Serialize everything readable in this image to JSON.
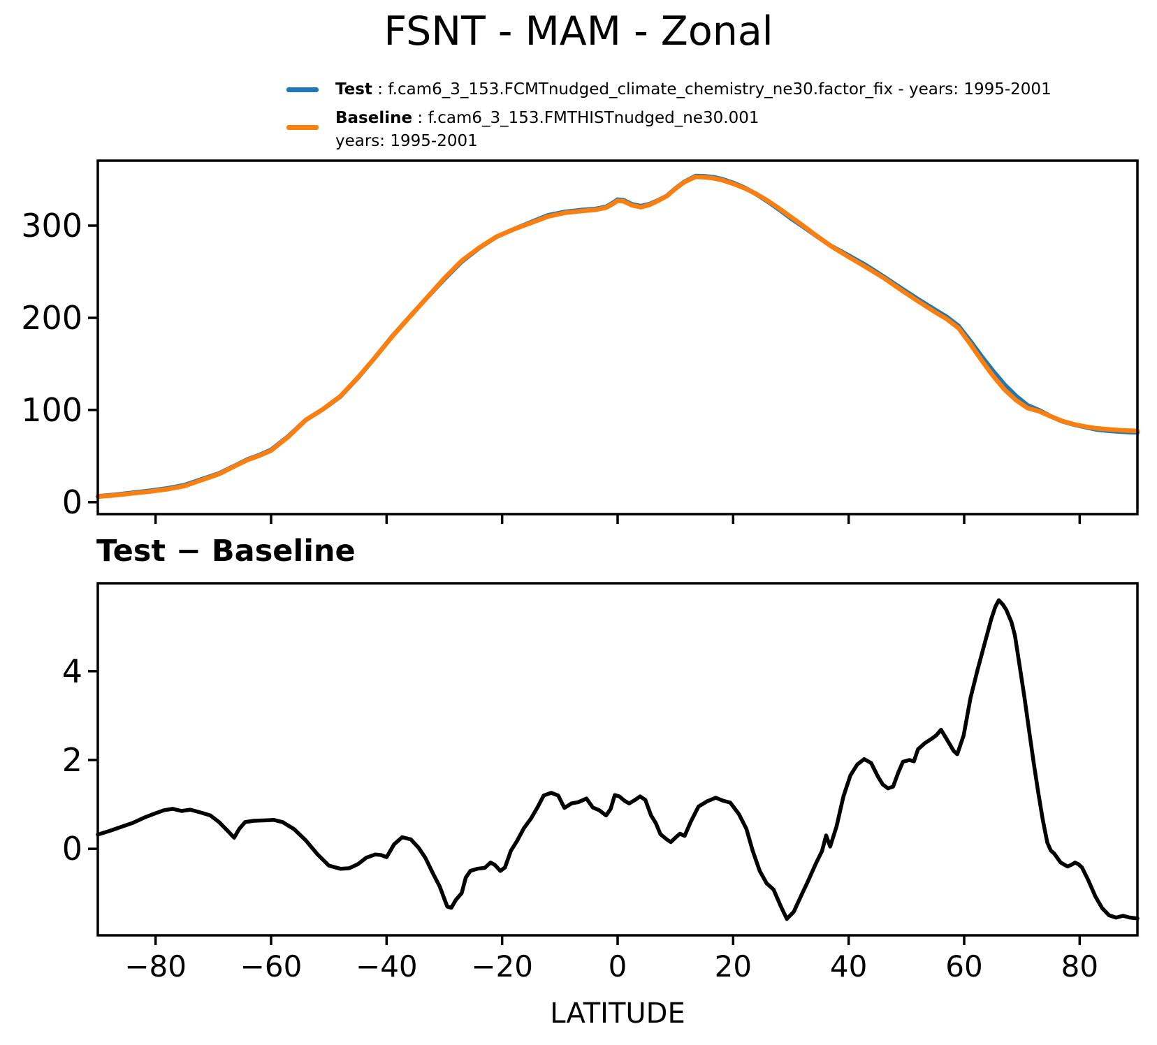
{
  "figure": {
    "title": "FSNT - MAM - Zonal",
    "background": "#ffffff"
  },
  "legend": {
    "entries": [
      {
        "label": "Test",
        "sep": " : ",
        "desc": "f.cam6_3_153.FCMTnudged_climate_chemistry_ne30.factor_fix - years: 1995-2001",
        "color": "#1f77b4"
      },
      {
        "label": "Baseline",
        "sep": " : ",
        "desc": "f.cam6_3_153.FMTHISTnudged_ne30.001",
        "desc2": "years: 1995-2001",
        "color": "#ff7f0e"
      }
    ]
  },
  "chart_data": [
    {
      "type": "line",
      "title": "FSNT - MAM - Zonal",
      "xlabel": "",
      "ylabel": "",
      "xlim": [
        -90,
        90
      ],
      "ylim": [
        -13,
        370.5
      ],
      "xticks": [
        -80,
        -60,
        -40,
        -20,
        0,
        20,
        40,
        60,
        80
      ],
      "xtick_labels": [],
      "yticks": [
        0,
        100,
        200,
        300
      ],
      "ytick_labels": [
        "0",
        "100",
        "200",
        "300"
      ],
      "grid": false,
      "legend_position": "above-top-center",
      "x": [
        -90,
        -87,
        -84,
        -81,
        -78,
        -75,
        -72,
        -69,
        -66,
        -64,
        -62,
        -60,
        -57,
        -54,
        -51,
        -48,
        -45,
        -42,
        -39,
        -36,
        -33,
        -30,
        -27,
        -24,
        -21,
        -18,
        -15,
        -12,
        -9,
        -6,
        -4,
        -2,
        -1,
        0,
        1,
        2.5,
        4,
        5.5,
        7,
        8.5,
        10,
        11.5,
        13.5,
        15,
        16.5,
        18,
        20,
        22,
        24,
        26,
        28,
        30,
        32,
        34,
        35,
        37,
        40,
        43,
        46,
        49,
        52,
        55,
        57,
        59,
        61,
        63,
        65,
        67,
        69,
        71,
        73,
        75,
        77,
        79,
        81,
        83,
        85,
        87,
        89,
        90
      ],
      "series": [
        {
          "name": "Test",
          "color": "#1f77b4",
          "linewidth": 6.5,
          "values": [
            6.3,
            8.0,
            10.1,
            12.3,
            14.9,
            18.4,
            24.8,
            31.1,
            40.3,
            46.6,
            51.1,
            56.7,
            71.5,
            89.2,
            100.8,
            114.6,
            134.7,
            156.9,
            180.1,
            201.2,
            221.9,
            242.0,
            261.0,
            275.6,
            287.7,
            296.1,
            303.7,
            311.2,
            315.0,
            317.1,
            317.9,
            320.3,
            324.0,
            328.2,
            327.6,
            323.1,
            321.2,
            323.3,
            327.4,
            332.2,
            340.3,
            347.4,
            353.8,
            353.5,
            352.6,
            350.6,
            346.4,
            341.0,
            334.2,
            326.2,
            317.3,
            308.0,
            299.5,
            290.6,
            286.3,
            277.7,
            267.5,
            257.0,
            244.9,
            232.4,
            220.2,
            208.5,
            200.9,
            191.3,
            175.3,
            158.3,
            142.3,
            127.4,
            115.0,
            104.9,
            99.6,
            93.0,
            87.7,
            84.2,
            81.4,
            78.8,
            77.5,
            76.5,
            75.9,
            75.7
          ]
        },
        {
          "name": "Baseline",
          "color": "#ff7f0e",
          "linewidth": 6.5,
          "values": [
            6,
            7.5,
            9.5,
            11.5,
            14,
            17.5,
            24,
            30.5,
            40,
            46,
            50.5,
            56,
            71,
            89,
            101,
            115,
            135,
            157,
            180,
            201,
            222,
            243,
            262,
            276,
            288,
            296,
            303,
            310,
            314,
            316,
            317,
            319.5,
            323,
            327,
            326.5,
            322,
            320,
            322.5,
            327,
            332,
            340,
            347,
            353,
            352.5,
            351.5,
            349.5,
            345.5,
            340.5,
            334.5,
            327,
            318.5,
            309.5,
            300.5,
            291,
            286.5,
            277.5,
            266,
            255,
            243.5,
            230.5,
            218,
            206,
            198.5,
            189,
            172,
            154,
            137,
            122,
            110.5,
            102,
            98.5,
            93,
            88,
            84.5,
            82,
            80,
            79,
            78,
            77.5,
            77.3
          ]
        }
      ]
    },
    {
      "type": "line",
      "title": "Test − Baseline",
      "xlabel": "LATITUDE",
      "ylabel": "",
      "xlim": [
        -90,
        90
      ],
      "ylim": [
        -1.95,
        5.98
      ],
      "xticks": [
        -80,
        -60,
        -40,
        -20,
        0,
        20,
        40,
        60,
        80
      ],
      "xtick_labels": [
        "−80",
        "−60",
        "−40",
        "−20",
        "0",
        "20",
        "40",
        "60",
        "80"
      ],
      "yticks": [
        0,
        2,
        4
      ],
      "ytick_labels": [
        "0",
        "2",
        "4"
      ],
      "grid": false,
      "x": [
        -90,
        -88,
        -86,
        -84,
        -82,
        -80,
        -78.5,
        -77,
        -75.5,
        -74,
        -72,
        -70.5,
        -69,
        -67.5,
        -66.4,
        -65.5,
        -64.5,
        -63,
        -61,
        -59.5,
        -58,
        -56,
        -54,
        -52,
        -50,
        -48,
        -46.5,
        -45,
        -43.5,
        -42,
        -41,
        -40,
        -38.7,
        -37.3,
        -35.8,
        -34.5,
        -33.3,
        -32,
        -30.8,
        -29.5,
        -28.8,
        -28,
        -27,
        -26.3,
        -25.5,
        -24.3,
        -23,
        -22,
        -21.3,
        -20.3,
        -19.5,
        -18.5,
        -17.4,
        -16.2,
        -15,
        -13.8,
        -12.8,
        -11.5,
        -10.3,
        -9.2,
        -8,
        -6.8,
        -5.4,
        -4.3,
        -3.2,
        -2,
        -1.2,
        -0.5,
        0.3,
        1.2,
        2,
        3,
        3.9,
        4.8,
        5.8,
        6.6,
        7.4,
        8.5,
        9.2,
        10,
        10.8,
        11.6,
        12.7,
        14,
        15.5,
        17,
        18.3,
        19.5,
        21,
        22.3,
        23.4,
        24.6,
        25.8,
        27,
        28.2,
        29.3,
        30.5,
        31.8,
        33,
        34.3,
        35.4,
        36.1,
        36.8,
        37.9,
        39.1,
        40.3,
        41.5,
        42.7,
        43.9,
        45.1,
        45.9,
        46.8,
        47.7,
        48.6,
        49.4,
        50.5,
        51.3,
        52,
        53.2,
        54.4,
        55.2,
        56,
        57.2,
        58.2,
        58.8,
        59.9,
        61.1,
        62.3,
        63.5,
        64.7,
        65.4,
        66,
        66.7,
        67.3,
        68.2,
        68.8,
        69.6,
        70.4,
        71.2,
        72,
        72.8,
        73.6,
        74.4,
        75,
        75.6,
        76.7,
        77.9,
        78.6,
        79.2,
        79.8,
        80.4,
        81.5,
        82.7,
        83.9,
        85.1,
        86.3,
        87.5,
        88.7,
        90
      ],
      "series": [
        {
          "name": "Test − Baseline",
          "color": "#000000",
          "linewidth": 5.5,
          "values": [
            0.32,
            0.4,
            0.49,
            0.58,
            0.7,
            0.8,
            0.87,
            0.9,
            0.85,
            0.88,
            0.81,
            0.75,
            0.6,
            0.4,
            0.25,
            0.45,
            0.6,
            0.63,
            0.64,
            0.65,
            0.6,
            0.44,
            0.19,
            -0.12,
            -0.38,
            -0.45,
            -0.44,
            -0.35,
            -0.2,
            -0.13,
            -0.14,
            -0.19,
            0.1,
            0.26,
            0.21,
            0.03,
            -0.2,
            -0.55,
            -0.85,
            -1.3,
            -1.33,
            -1.15,
            -1.0,
            -0.65,
            -0.5,
            -0.45,
            -0.43,
            -0.31,
            -0.36,
            -0.5,
            -0.42,
            -0.05,
            0.18,
            0.47,
            0.68,
            0.95,
            1.2,
            1.26,
            1.2,
            0.92,
            1.02,
            1.05,
            1.13,
            0.93,
            0.87,
            0.75,
            0.9,
            1.21,
            1.18,
            1.08,
            1.02,
            1.1,
            1.18,
            1.1,
            0.75,
            0.58,
            0.33,
            0.21,
            0.15,
            0.25,
            0.34,
            0.29,
            0.62,
            0.95,
            1.07,
            1.15,
            1.08,
            1.04,
            0.78,
            0.45,
            -0.05,
            -0.5,
            -0.78,
            -0.92,
            -1.28,
            -1.58,
            -1.42,
            -1.05,
            -0.72,
            -0.34,
            -0.05,
            0.3,
            0.05,
            0.5,
            1.18,
            1.65,
            1.9,
            2.02,
            1.93,
            1.62,
            1.45,
            1.36,
            1.4,
            1.72,
            1.96,
            2.0,
            1.97,
            2.24,
            2.38,
            2.48,
            2.56,
            2.68,
            2.42,
            2.2,
            2.13,
            2.55,
            3.4,
            4.02,
            4.6,
            5.18,
            5.45,
            5.6,
            5.5,
            5.38,
            5.1,
            4.8,
            4.12,
            3.44,
            2.7,
            1.97,
            1.29,
            0.66,
            0.14,
            -0.04,
            -0.11,
            -0.31,
            -0.4,
            -0.36,
            -0.31,
            -0.35,
            -0.42,
            -0.71,
            -1.07,
            -1.34,
            -1.5,
            -1.55,
            -1.51,
            -1.55,
            -1.57
          ]
        }
      ]
    }
  ]
}
